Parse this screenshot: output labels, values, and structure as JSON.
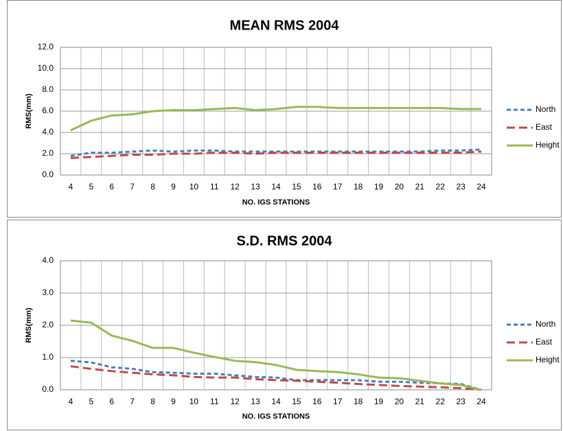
{
  "chart_data": [
    {
      "type": "line",
      "title": "MEAN RMS 2004",
      "x_label": "NO. IGS STATIONS",
      "y_label": "RMS(mm)",
      "categories": [
        "4",
        "5",
        "6",
        "7",
        "8",
        "9",
        "10",
        "11",
        "12",
        "13",
        "14",
        "15",
        "16",
        "17",
        "18",
        "19",
        "20",
        "21",
        "22",
        "23",
        "24"
      ],
      "series": [
        {
          "name": "North",
          "color": "#4a7ebb",
          "dash": "dashed",
          "values": [
            1.8,
            2.1,
            2.1,
            2.2,
            2.3,
            2.2,
            2.3,
            2.3,
            2.2,
            2.2,
            2.2,
            2.2,
            2.2,
            2.2,
            2.2,
            2.2,
            2.2,
            2.2,
            2.3,
            2.3,
            2.4
          ]
        },
        {
          "name": "East",
          "color": "#be4b48",
          "dash": "long-dashed",
          "values": [
            1.6,
            1.7,
            1.8,
            1.9,
            1.9,
            2.0,
            2.0,
            2.1,
            2.1,
            2.0,
            2.1,
            2.1,
            2.1,
            2.1,
            2.1,
            2.1,
            2.1,
            2.1,
            2.1,
            2.1,
            2.2
          ]
        },
        {
          "name": "Height",
          "color": "#98b954",
          "dash": "solid",
          "values": [
            4.2,
            5.1,
            5.6,
            5.7,
            6.0,
            6.1,
            6.1,
            6.2,
            6.3,
            6.1,
            6.2,
            6.4,
            6.4,
            6.3,
            6.3,
            6.3,
            6.3,
            6.3,
            6.3,
            6.2,
            6.2
          ]
        }
      ],
      "ylim": [
        0,
        12
      ],
      "yticks": [
        {
          "value": 0,
          "label": "0.0"
        },
        {
          "value": 2,
          "label": "2.0"
        },
        {
          "value": 4,
          "label": "4.0"
        },
        {
          "value": 6,
          "label": "6.0"
        },
        {
          "value": 8,
          "label": "8.0"
        },
        {
          "value": 10,
          "label": "10.0"
        },
        {
          "value": 12,
          "label": "12.0"
        }
      ],
      "grid": true,
      "legend": "right"
    },
    {
      "type": "line",
      "title": "S.D. RMS 2004",
      "x_label": "NO. IGS STATIONS",
      "y_label": "RMS(mm)",
      "categories": [
        "4",
        "5",
        "6",
        "7",
        "8",
        "9",
        "10",
        "11",
        "12",
        "13",
        "14",
        "15",
        "16",
        "17",
        "18",
        "19",
        "20",
        "21",
        "22",
        "23",
        "24"
      ],
      "series": [
        {
          "name": "North",
          "color": "#4a7ebb",
          "dash": "dashed",
          "values": [
            0.9,
            0.85,
            0.7,
            0.65,
            0.55,
            0.53,
            0.5,
            0.5,
            0.45,
            0.4,
            0.38,
            0.3,
            0.3,
            0.3,
            0.3,
            0.25,
            0.25,
            0.22,
            0.2,
            0.18,
            0.0
          ]
        },
        {
          "name": "East",
          "color": "#be4b48",
          "dash": "long-dashed",
          "values": [
            0.73,
            0.65,
            0.58,
            0.53,
            0.48,
            0.45,
            0.4,
            0.38,
            0.38,
            0.33,
            0.3,
            0.28,
            0.25,
            0.22,
            0.18,
            0.15,
            0.12,
            0.1,
            0.08,
            0.05,
            0.0
          ]
        },
        {
          "name": "Height",
          "color": "#98b954",
          "dash": "solid",
          "values": [
            2.15,
            2.08,
            1.68,
            1.52,
            1.3,
            1.3,
            1.15,
            1.02,
            0.9,
            0.86,
            0.77,
            0.62,
            0.58,
            0.55,
            0.48,
            0.38,
            0.36,
            0.28,
            0.2,
            0.15,
            0.0
          ]
        }
      ],
      "ylim": [
        0,
        4
      ],
      "yticks": [
        {
          "value": 0,
          "label": "0.0"
        },
        {
          "value": 1,
          "label": "1.0"
        },
        {
          "value": 2,
          "label": "2.0"
        },
        {
          "value": 3,
          "label": "3.0"
        },
        {
          "value": 4,
          "label": "4.0"
        }
      ],
      "grid": true,
      "legend": "right"
    }
  ]
}
